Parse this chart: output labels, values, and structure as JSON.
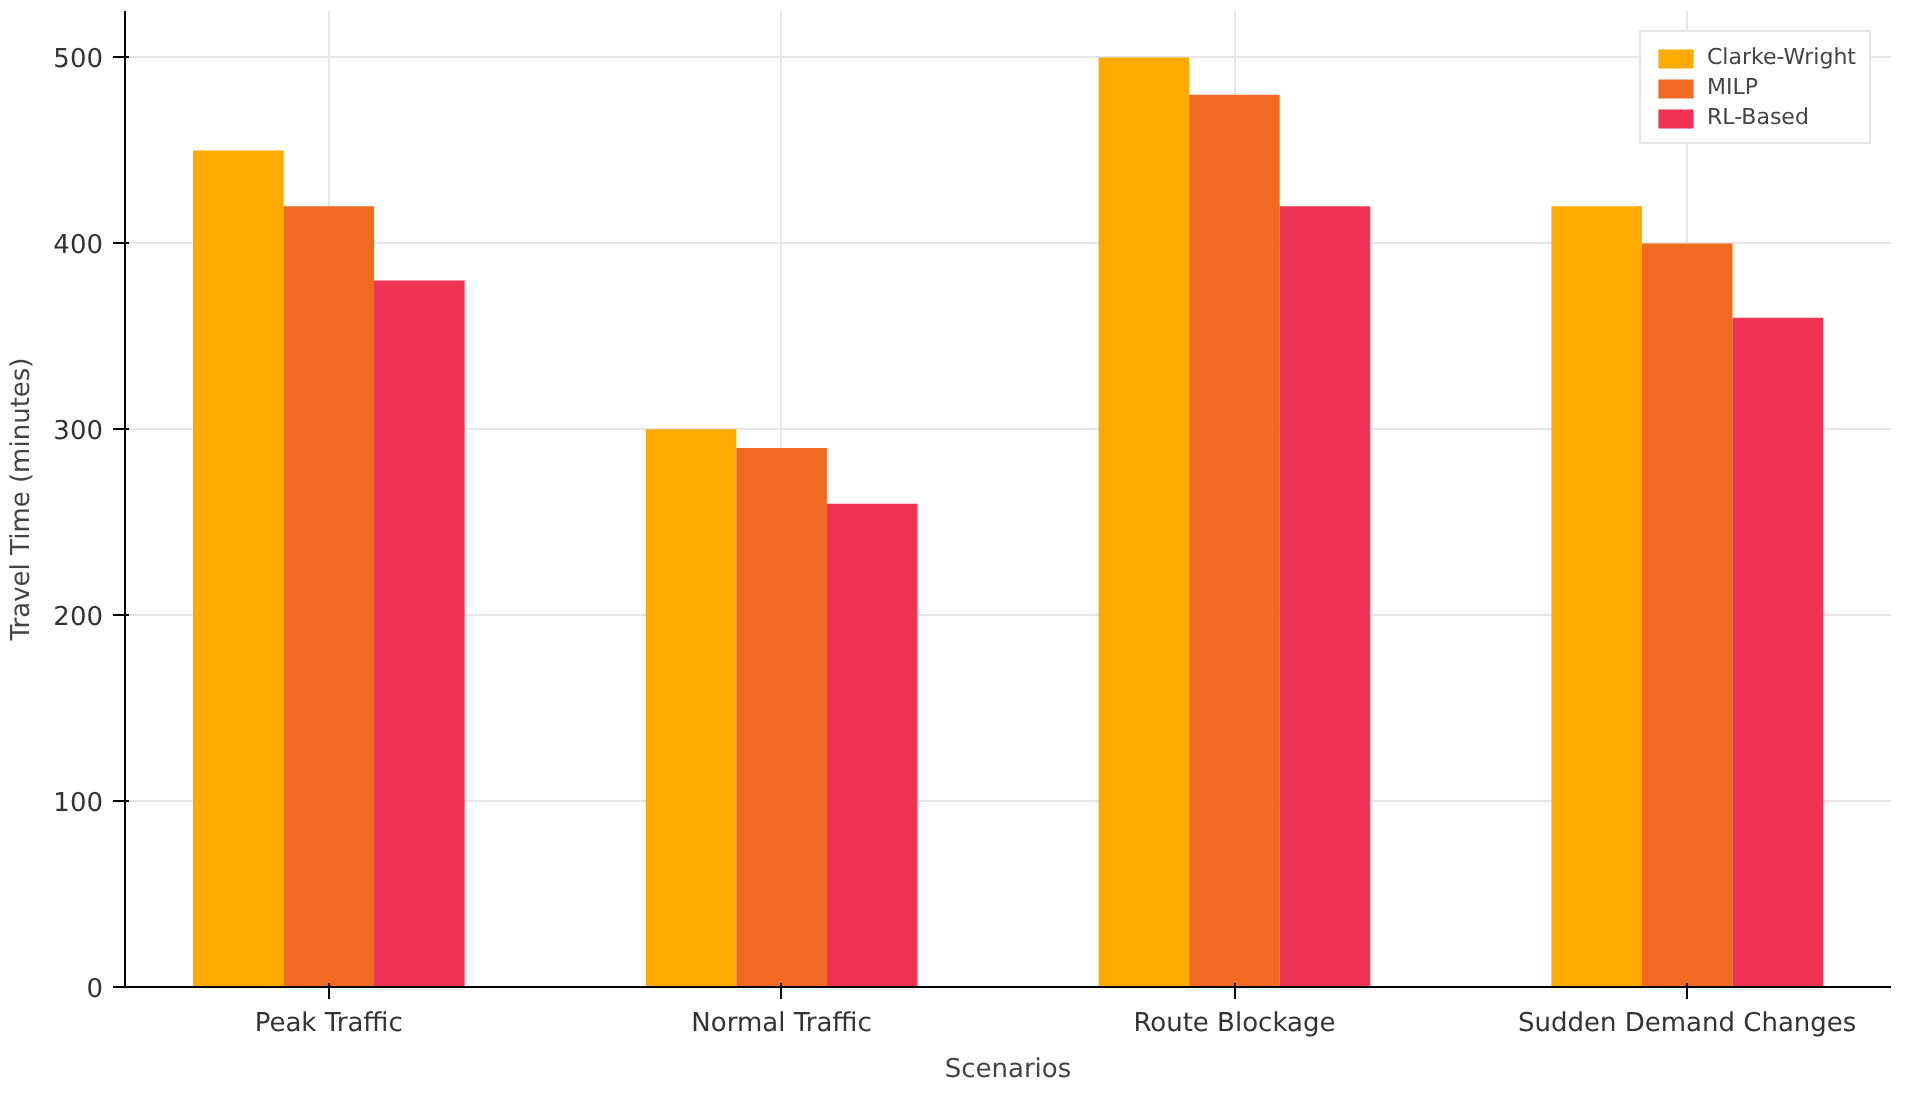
{
  "chart_data": {
    "type": "bar",
    "xlabel": "Scenarios",
    "ylabel": "Travel Time (minutes)",
    "categories": [
      "Peak Traffic",
      "Normal Traffic",
      "Route Blockage",
      "Sudden Demand Changes"
    ],
    "series": [
      {
        "name": "Clarke-Wright",
        "color": "#ffaa00",
        "values": [
          450,
          300,
          500,
          420
        ]
      },
      {
        "name": "MILP",
        "color": "#f06a22",
        "values": [
          420,
          290,
          480,
          400
        ]
      },
      {
        "name": "RL-Based",
        "color": "#ee3355",
        "values": [
          380,
          260,
          420,
          360
        ]
      }
    ],
    "ylim": [
      0,
      525
    ],
    "yticks": [
      0,
      100,
      200,
      300,
      400,
      500
    ],
    "grid": true,
    "legend": "top right"
  }
}
